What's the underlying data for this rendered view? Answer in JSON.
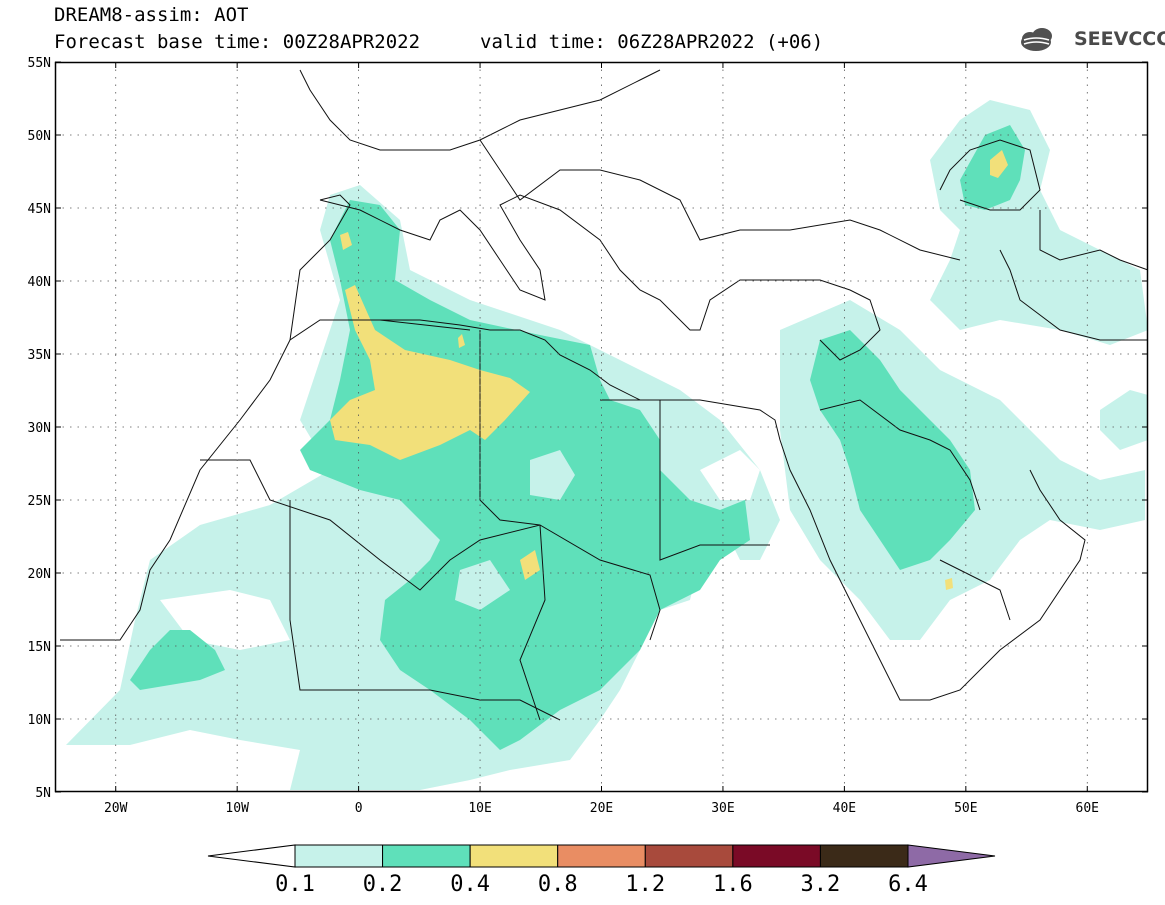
{
  "header": {
    "product": "DREAM8-assim: AOT",
    "base_time": "Forecast base time: 00Z28APR2022",
    "valid_time": "valid time: 06Z28APR2022 (+06)"
  },
  "logo": {
    "text": "SEEVCCC",
    "icon": "cloud-icon"
  },
  "map": {
    "projection": "lat-lon",
    "lon_range": [
      -25,
      65
    ],
    "lat_range": [
      5,
      55
    ],
    "lon_ticks": [
      "20W",
      "10W",
      "0",
      "10E",
      "20E",
      "30E",
      "40E",
      "50E",
      "60E"
    ],
    "lat_ticks": [
      "5N",
      "10N",
      "15N",
      "20N",
      "25N",
      "30N",
      "35N",
      "40N",
      "45N",
      "50N",
      "55N"
    ],
    "grid": "dotted",
    "field": "Aerosol optical thickness"
  },
  "colorbar": {
    "levels": [
      "0.1",
      "0.2",
      "0.4",
      "0.8",
      "1.2",
      "1.6",
      "3.2",
      "6.4"
    ],
    "colors": [
      "#ffffff",
      "#c6f2ea",
      "#5fe0ba",
      "#f2e07a",
      "#e98d63",
      "#a84a3c",
      "#7a0a26",
      "#3b2a18",
      "#8e6aa6"
    ]
  }
}
